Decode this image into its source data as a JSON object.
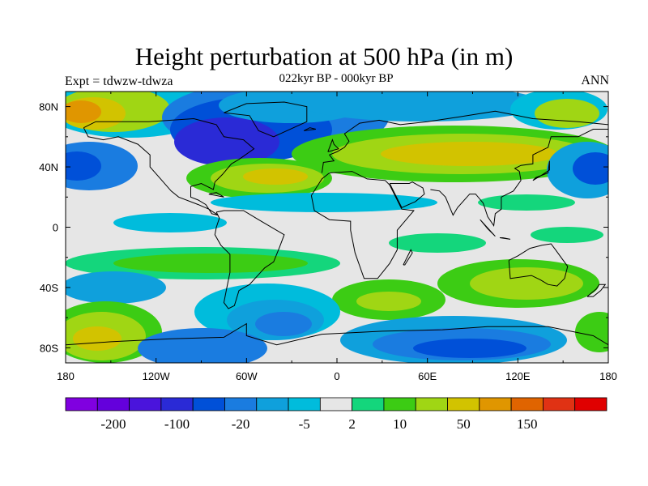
{
  "title": "Height perturbation at 500 hPa (in m)",
  "left_label": "Expt = tdwzw-tdwza",
  "center_label": "022kyr BP - 000kyr BP",
  "right_label": "ANN",
  "map": {
    "projection": "cylindrical equidistant",
    "lon_range": [
      -180,
      180
    ],
    "lat_range": [
      -90,
      90
    ],
    "lon_ticks": [
      {
        "value": -180,
        "label": "180"
      },
      {
        "value": -120,
        "label": "120W"
      },
      {
        "value": -60,
        "label": "60W"
      },
      {
        "value": 0,
        "label": "0"
      },
      {
        "value": 60,
        "label": "60E"
      },
      {
        "value": 120,
        "label": "120E"
      },
      {
        "value": 180,
        "label": "180"
      }
    ],
    "lat_ticks": [
      {
        "value": 80,
        "label": "80N"
      },
      {
        "value": 40,
        "label": "40N"
      },
      {
        "value": 0,
        "label": "0"
      },
      {
        "value": -40,
        "label": "40S"
      },
      {
        "value": -80,
        "label": "80S"
      }
    ],
    "background_color": "#e6e6e6",
    "coastline_color": "#000000"
  },
  "colorbar": {
    "colors": [
      "#8000e0",
      "#6400dc",
      "#4a14dc",
      "#2a2ad6",
      "#0050d8",
      "#1a7ce0",
      "#0fa0dc",
      "#00bcdc",
      "#e6e6e6",
      "#14d67c",
      "#3ccc14",
      "#a0d614",
      "#d2c300",
      "#e09600",
      "#e06400",
      "#e03214",
      "#e00000"
    ],
    "tick_labels": [
      "-200",
      "-100",
      "-20",
      "-5",
      "2",
      "10",
      "50",
      "150"
    ],
    "tick_values": [
      -200,
      -100,
      -20,
      -5,
      2,
      10,
      50,
      150
    ]
  }
}
